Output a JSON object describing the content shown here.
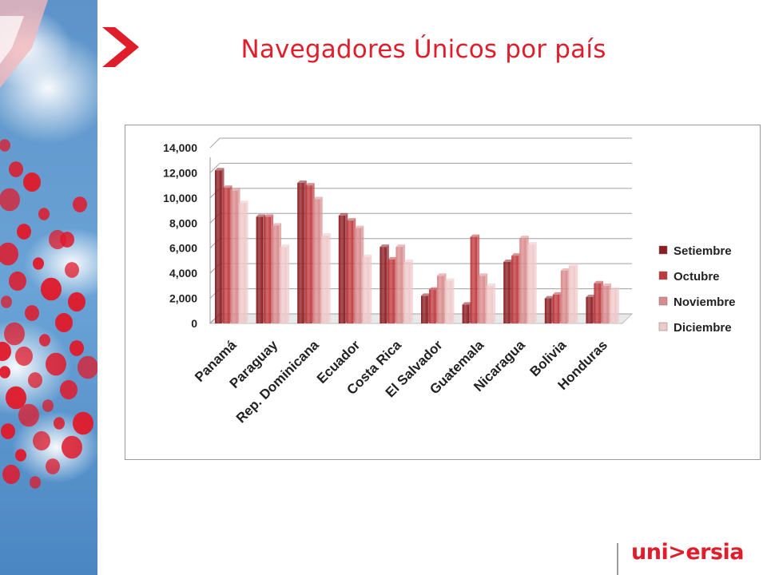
{
  "slide": {
    "title": "Navegadores Únicos por país",
    "brand": "uni>ersia"
  },
  "colors": {
    "accent": "#e01e2b",
    "series": [
      "#8c1d22",
      "#bf3a3f",
      "#d98a8c",
      "#efc8c9"
    ]
  },
  "chart_data": {
    "type": "bar",
    "title": "",
    "xlabel": "",
    "ylabel": "",
    "ylim": [
      0,
      14000
    ],
    "yticks": [
      "0",
      "2,000",
      "4,000",
      "6,000",
      "8,000",
      "10,000",
      "12,000",
      "14,000"
    ],
    "grid": true,
    "legend_position": "right",
    "categories": [
      "Panamá",
      "Paraguay",
      "Rep. Dominicana",
      "Ecuador",
      "Costa Rica",
      "El Salvador",
      "Guatemala",
      "Nicaragua",
      "Bolivia",
      "Honduras"
    ],
    "series": [
      {
        "name": "Setiembre",
        "values": [
          12200,
          8500,
          11200,
          8600,
          6100,
          2200,
          1500,
          4900,
          2000,
          2100
        ]
      },
      {
        "name": "Octubre",
        "values": [
          10800,
          8500,
          11000,
          8200,
          5100,
          2700,
          6900,
          5400,
          2300,
          3200
        ]
      },
      {
        "name": "Noviembre",
        "values": [
          10600,
          7800,
          9900,
          7600,
          6100,
          3800,
          3800,
          6800,
          4200,
          3000
        ]
      },
      {
        "name": "Diciembre",
        "values": [
          9600,
          6100,
          7000,
          5300,
          4900,
          3400,
          3000,
          6300,
          4600,
          2700
        ]
      }
    ]
  }
}
